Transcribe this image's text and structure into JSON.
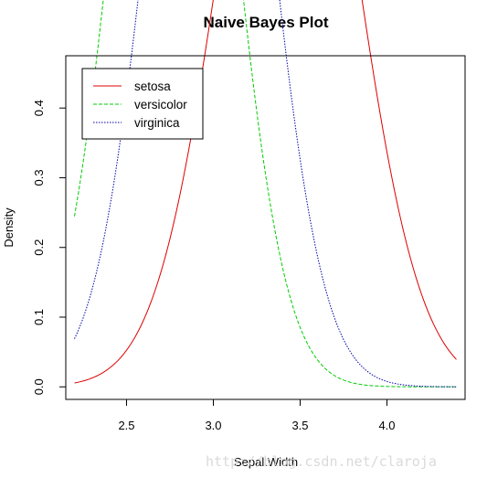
{
  "chart_data": {
    "type": "line",
    "title": "Naive Bayes Plot",
    "xlabel": "Sepal.Width",
    "ylabel": "Density",
    "xlim": [
      2.15,
      4.45
    ],
    "ylim": [
      -0.018,
      0.475
    ],
    "x_ticks": [
      2.5,
      3.0,
      3.5,
      4.0
    ],
    "x_tick_labels": [
      "2.5",
      "3.0",
      "3.5",
      "4.0"
    ],
    "y_ticks": [
      0.0,
      0.1,
      0.2,
      0.3,
      0.4
    ],
    "y_tick_labels": [
      "0.0",
      "0.1",
      "0.2",
      "0.3",
      "0.4"
    ],
    "x_range": [
      2.2,
      4.4
    ],
    "legend_position": "top-left",
    "grid": false,
    "series": [
      {
        "name": "setosa",
        "color": "#dd0000",
        "linestyle": "solid",
        "mean": 3.428,
        "sd": 0.379
      },
      {
        "name": "versicolor",
        "color": "#00cc00",
        "linestyle": "dashed",
        "mean": 2.77,
        "sd": 0.314
      },
      {
        "name": "virginica",
        "color": "#0000aa",
        "linestyle": "dotted",
        "mean": 2.974,
        "sd": 0.322
      }
    ]
  },
  "watermark": "http://blog.csdn.net/claroja"
}
